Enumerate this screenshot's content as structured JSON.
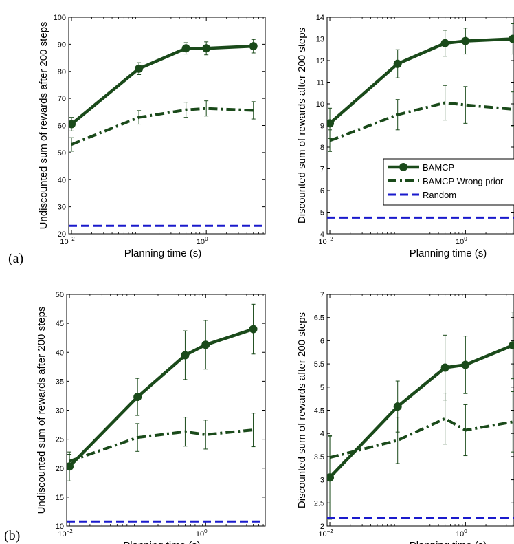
{
  "figure": {
    "panel_labels": [
      "(a)",
      "(b)"
    ],
    "colors": {
      "bamcp": "#1a4a1a",
      "random": "#1a1acc"
    }
  },
  "chart_data": [
    {
      "id": "a-left",
      "type": "line",
      "xlabel": "Planning time (s)",
      "ylabel": "Undiscounted sum of rewards after 200 steps",
      "xscale": "log",
      "xlim": [
        0.0091,
        7.5
      ],
      "ylim": [
        20,
        100
      ],
      "yticks": [
        20,
        30,
        40,
        50,
        60,
        70,
        80,
        90,
        100
      ],
      "xticks": [
        {
          "value": 0.01,
          "base": "10",
          "exp": "−2"
        },
        {
          "value": 1,
          "base": "10",
          "exp": "0"
        }
      ],
      "series": [
        {
          "name": "BAMCP",
          "style": "solid-marker",
          "x": [
            0.01,
            0.1,
            0.5,
            1,
            5
          ],
          "y": [
            60.5,
            81,
            88.5,
            88.5,
            89.3
          ],
          "err": [
            2.5,
            2.2,
            2.1,
            2.4,
            2.5
          ]
        },
        {
          "name": "BAMCP Wrong prior",
          "style": "dashdot",
          "x": [
            0.01,
            0.1,
            0.5,
            1,
            5
          ],
          "y": [
            53,
            63,
            65.8,
            66.3,
            65.6
          ],
          "err": [
            2.5,
            2.5,
            2.8,
            2.8,
            3.2
          ]
        },
        {
          "name": "Random",
          "style": "dashed",
          "x": [
            0.0091,
            7.5
          ],
          "y": [
            23,
            23
          ]
        }
      ]
    },
    {
      "id": "a-right",
      "type": "line",
      "xlabel": "Planning time (s)",
      "ylabel": "Discounted sum of rewards after 200 steps",
      "xscale": "log",
      "xlim": [
        0.0091,
        5.2
      ],
      "ylim": [
        4,
        14
      ],
      "yticks": [
        4,
        5,
        6,
        7,
        8,
        9,
        10,
        11,
        12,
        13,
        14
      ],
      "xticks": [
        {
          "value": 0.01,
          "base": "10",
          "exp": "−2"
        },
        {
          "value": 1,
          "base": "10",
          "exp": "0"
        }
      ],
      "series": [
        {
          "name": "BAMCP",
          "style": "solid-marker",
          "x": [
            0.01,
            0.1,
            0.5,
            1,
            5
          ],
          "y": [
            9.1,
            11.85,
            12.8,
            12.9,
            13
          ],
          "err": [
            0.7,
            0.65,
            0.6,
            0.6,
            0.7
          ]
        },
        {
          "name": "BAMCP Wrong prior",
          "style": "dashdot",
          "x": [
            0.01,
            0.1,
            0.5,
            1,
            5
          ],
          "y": [
            8.3,
            9.5,
            10.05,
            9.95,
            9.75
          ],
          "err": [
            0.5,
            0.7,
            0.8,
            0.85,
            0.8
          ]
        },
        {
          "name": "Random",
          "style": "dashed",
          "x": [
            0.0091,
            5.2
          ],
          "y": [
            4.75,
            4.75
          ]
        }
      ],
      "legend": {
        "position": "right",
        "entries": [
          "BAMCP",
          "BAMCP Wrong prior",
          "Random"
        ]
      }
    },
    {
      "id": "b-left",
      "type": "line",
      "xlabel": "Planning time (s)",
      "ylabel": "Undiscounted sum of rewards after 200 steps",
      "xscale": "log",
      "xlim": [
        0.0091,
        7.5
      ],
      "ylim": [
        10,
        50
      ],
      "yticks": [
        10,
        15,
        20,
        25,
        30,
        35,
        40,
        45,
        50
      ],
      "xticks": [
        {
          "value": 0.01,
          "base": "10",
          "exp": "−2"
        },
        {
          "value": 1,
          "base": "10",
          "exp": "0"
        }
      ],
      "series": [
        {
          "name": "BAMCP",
          "style": "solid-marker",
          "x": [
            0.01,
            0.1,
            0.5,
            1,
            5
          ],
          "y": [
            20.3,
            32.3,
            39.5,
            41.3,
            44
          ],
          "err": [
            2.5,
            3.2,
            4.2,
            4.2,
            4.3
          ]
        },
        {
          "name": "BAMCP Wrong prior",
          "style": "dashdot",
          "x": [
            0.01,
            0.1,
            0.5,
            1,
            5
          ],
          "y": [
            21.2,
            25.3,
            26.3,
            25.8,
            26.6
          ],
          "err": [
            1.2,
            2.4,
            2.5,
            2.5,
            2.9
          ]
        },
        {
          "name": "Random",
          "style": "dashed",
          "x": [
            0.0091,
            7.5
          ],
          "y": [
            10.8,
            10.8
          ]
        }
      ]
    },
    {
      "id": "b-right",
      "type": "line",
      "xlabel": "Planning time (s)",
      "ylabel": "Discounted sum of rewards after 200 steps",
      "xscale": "log",
      "xlim": [
        0.0091,
        5.2
      ],
      "ylim": [
        2,
        7
      ],
      "yticks": [
        2,
        2.5,
        3,
        3.5,
        4,
        4.5,
        5,
        5.5,
        6,
        6.5,
        7
      ],
      "xticks": [
        {
          "value": 0.01,
          "base": "10",
          "exp": "−2"
        },
        {
          "value": 1,
          "base": "10",
          "exp": "0"
        }
      ],
      "series": [
        {
          "name": "BAMCP",
          "style": "solid-marker",
          "x": [
            0.01,
            0.1,
            0.5,
            1,
            5
          ],
          "y": [
            3.05,
            4.58,
            5.42,
            5.48,
            5.9
          ],
          "err": [
            0.9,
            0.55,
            0.7,
            0.62,
            0.72
          ]
        },
        {
          "name": "BAMCP Wrong prior",
          "style": "dashdot",
          "x": [
            0.01,
            0.1,
            0.5,
            1,
            5
          ],
          "y": [
            3.48,
            3.85,
            4.32,
            4.07,
            4.25
          ],
          "err": [
            0.45,
            0.5,
            0.55,
            0.55,
            0.65
          ]
        },
        {
          "name": "Random",
          "style": "dashed",
          "x": [
            0.0091,
            5.2
          ],
          "y": [
            2.17,
            2.17
          ]
        }
      ]
    }
  ]
}
